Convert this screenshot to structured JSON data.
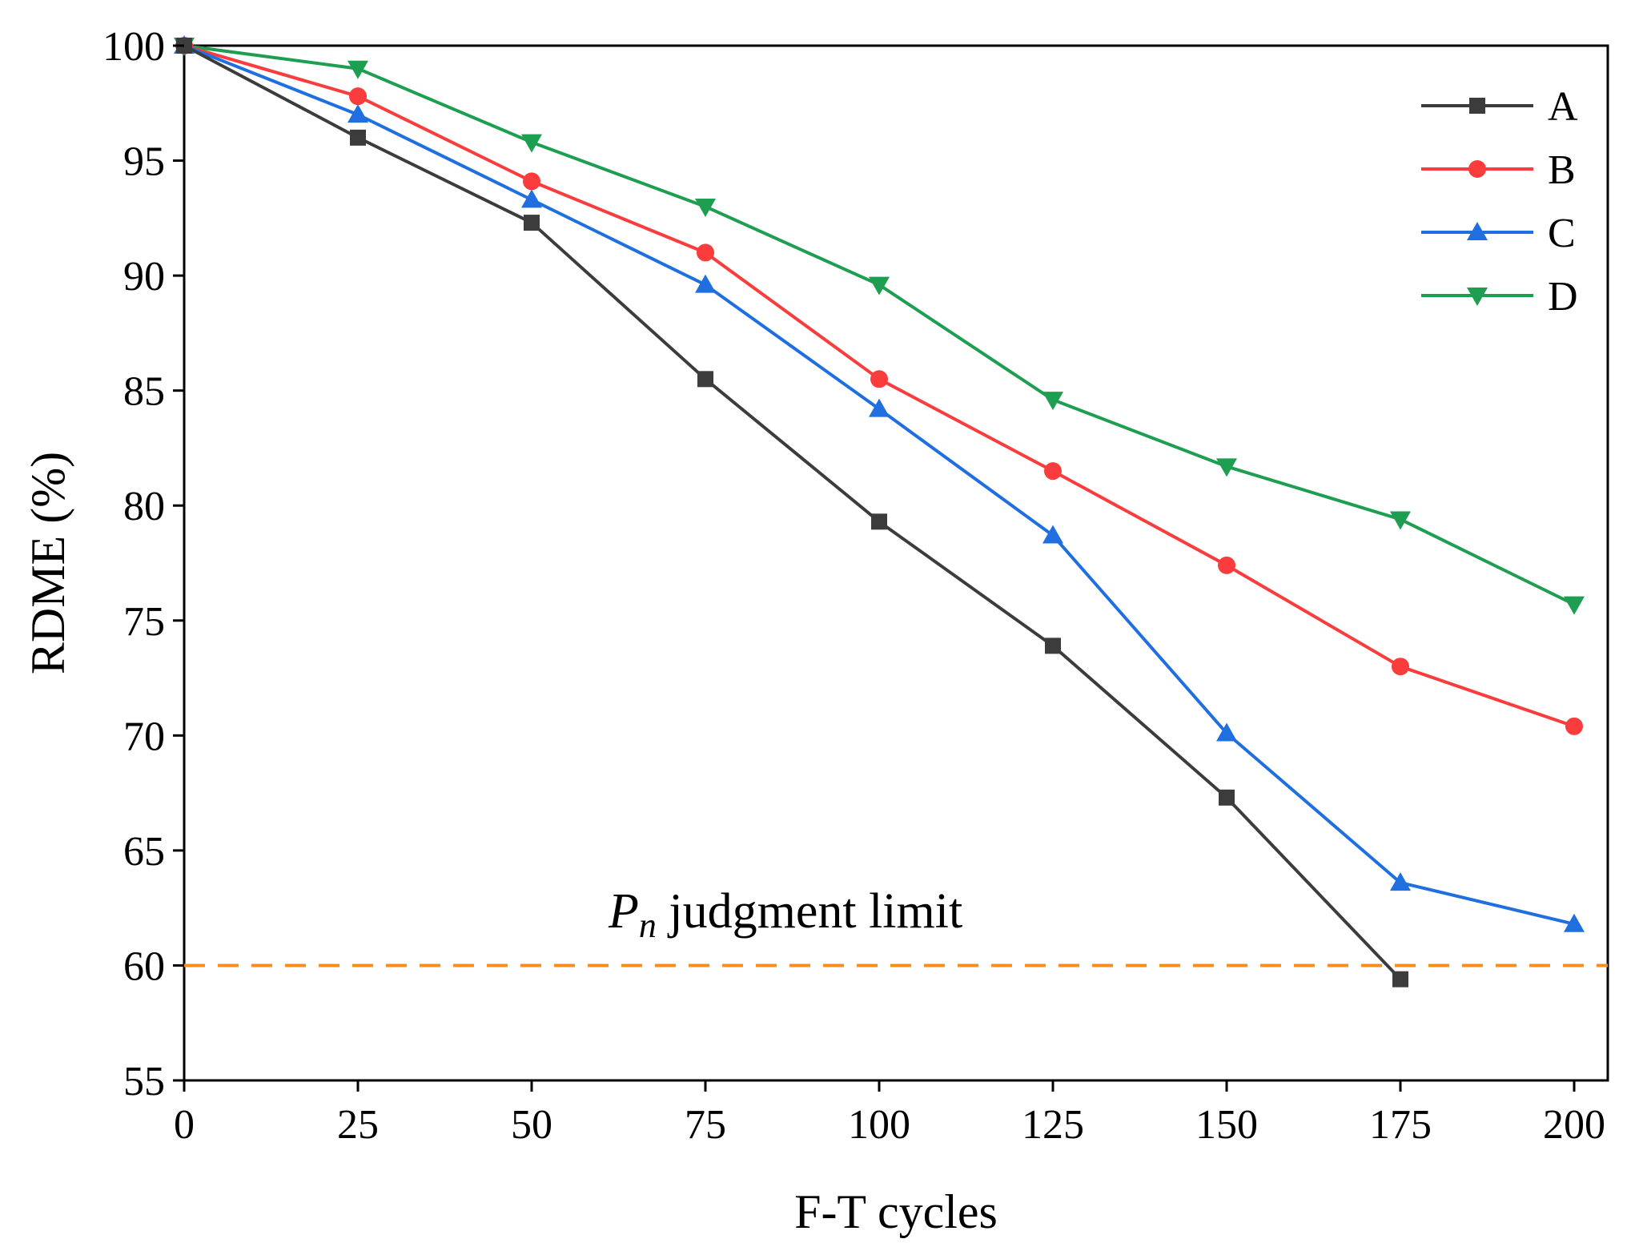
{
  "chart_data": {
    "type": "line",
    "title": "",
    "xlabel": "F-T cycles",
    "ylabel": "RDME (%)",
    "xlim": [
      0,
      205
    ],
    "ylim": [
      55,
      100
    ],
    "x": [
      0,
      25,
      50,
      75,
      100,
      125,
      150,
      175,
      200
    ],
    "xticks": [
      "0",
      "25",
      "50",
      "75",
      "100",
      "125",
      "150",
      "175",
      "200"
    ],
    "yticks": [
      "55",
      "60",
      "65",
      "70",
      "75",
      "80",
      "85",
      "90",
      "95",
      "100"
    ],
    "grid": false,
    "legend_position": "top-right",
    "series": [
      {
        "name": "A",
        "color": "#3c3c3c",
        "marker": "square",
        "x": [
          0,
          25,
          50,
          75,
          100,
          125,
          150,
          175
        ],
        "values": [
          100,
          96.0,
          92.3,
          85.5,
          79.3,
          73.9,
          67.3,
          59.4
        ]
      },
      {
        "name": "B",
        "color": "#fa3c3c",
        "marker": "circle",
        "x": [
          0,
          25,
          50,
          75,
          100,
          125,
          150,
          175,
          200
        ],
        "values": [
          100,
          97.8,
          94.1,
          91.0,
          85.5,
          81.5,
          77.4,
          73.0,
          70.4
        ]
      },
      {
        "name": "C",
        "color": "#1f6fe0",
        "marker": "triangle-up",
        "x": [
          0,
          25,
          50,
          75,
          100,
          125,
          150,
          175,
          200
        ],
        "values": [
          100,
          97.0,
          93.3,
          89.6,
          84.2,
          78.7,
          70.1,
          63.6,
          61.8
        ]
      },
      {
        "name": "D",
        "color": "#1e9e50",
        "marker": "triangle-down",
        "x": [
          0,
          25,
          50,
          75,
          100,
          125,
          150,
          175,
          200
        ],
        "values": [
          100,
          99.0,
          95.8,
          93.0,
          89.6,
          84.6,
          81.7,
          79.4,
          75.7
        ]
      }
    ],
    "reference_line": {
      "y": 60,
      "color": "#ff8c1a",
      "style": "dashed"
    },
    "annotation": {
      "symbol": "P",
      "subscript": "n",
      "text": " judgment limit"
    }
  }
}
